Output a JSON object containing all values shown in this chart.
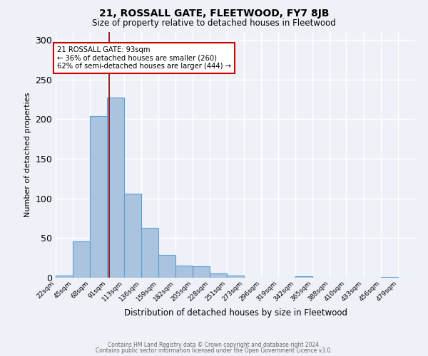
{
  "title": "21, ROSSALL GATE, FLEETWOOD, FY7 8JB",
  "subtitle": "Size of property relative to detached houses in Fleetwood",
  "xlabel": "Distribution of detached houses by size in Fleetwood",
  "ylabel": "Number of detached properties",
  "bin_labels": [
    "22sqm",
    "45sqm",
    "68sqm",
    "91sqm",
    "113sqm",
    "136sqm",
    "159sqm",
    "182sqm",
    "205sqm",
    "228sqm",
    "251sqm",
    "273sqm",
    "296sqm",
    "319sqm",
    "342sqm",
    "365sqm",
    "388sqm",
    "410sqm",
    "433sqm",
    "456sqm",
    "479sqm"
  ],
  "bin_edges": [
    22,
    45,
    68,
    91,
    113,
    136,
    159,
    182,
    205,
    228,
    251,
    273,
    296,
    319,
    342,
    365,
    388,
    410,
    433,
    456,
    479,
    502
  ],
  "bar_heights": [
    3,
    46,
    204,
    227,
    106,
    63,
    29,
    15,
    14,
    5,
    3,
    0,
    0,
    0,
    2,
    0,
    0,
    0,
    0,
    1,
    0
  ],
  "bar_color": "#aac4e0",
  "bar_edge_color": "#5a9fd4",
  "ylim": [
    0,
    310
  ],
  "yticks": [
    0,
    50,
    100,
    150,
    200,
    250,
    300
  ],
  "property_size": 93,
  "annotation_title": "21 ROSSALL GATE: 93sqm",
  "annotation_line1": "← 36% of detached houses are smaller (260)",
  "annotation_line2": "62% of semi-detached houses are larger (444) →",
  "vline_color": "#8b0000",
  "annotation_box_color": "#ffffff",
  "annotation_box_edge": "#cc0000",
  "footer_line1": "Contains HM Land Registry data © Crown copyright and database right 2024.",
  "footer_line2": "Contains public sector information licensed under the Open Government Licence v3.0.",
  "background_color": "#eef2f8"
}
